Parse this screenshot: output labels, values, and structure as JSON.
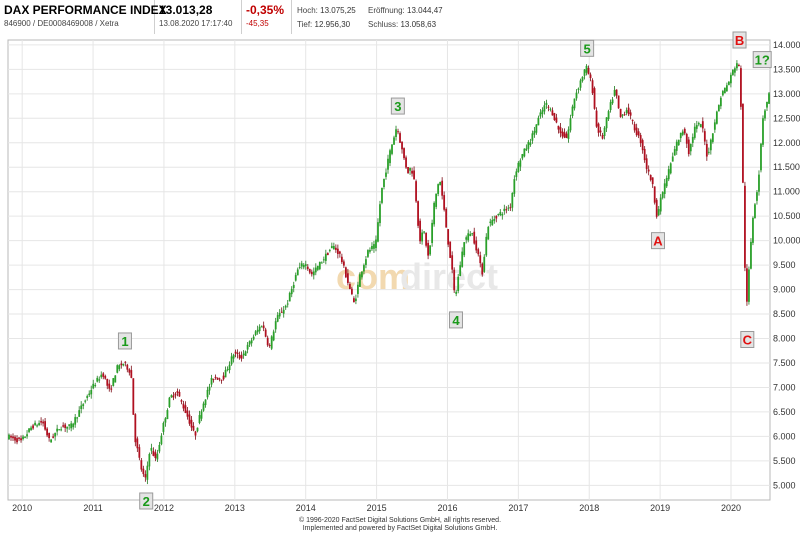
{
  "header": {
    "title": "DAX PERFORMANCE INDEX",
    "id_line": "846900 / DE0008469008 / Xetra",
    "price": "13.013,28",
    "datetime": "13.08.2020 17:17:40",
    "change_pct": "-0,35%",
    "change_abs": "-45,35",
    "stats": {
      "high_label": "Hoch:",
      "high_value": "13.075,25",
      "open_label": "Eröffnung:",
      "open_value": "13.044,47",
      "low_label": "Tief:",
      "low_value": "12.956,30",
      "close_label": "Schluss:",
      "close_value": "13.058,63"
    }
  },
  "watermark": {
    "part1": "com",
    "part2": "direct"
  },
  "footer": {
    "line1": "© 1996-2020 FactSet Digital Solutions GmbH, all rights reserved.",
    "line2": "Implemented and powered by FactSet Digital Solutions GmbH."
  },
  "colors": {
    "up": "#2aa02a",
    "down": "#b01020",
    "label_green": "#1a9a1a",
    "label_red": "#e01010",
    "label_bg": "#e4e4e4"
  },
  "chart_data": {
    "type": "candlestick",
    "x_unit": "year",
    "xlim": [
      2009.8,
      2020.55
    ],
    "ylim": [
      4700,
      14100
    ],
    "y_ticks": [
      5000,
      5500,
      6000,
      6500,
      7000,
      7500,
      8000,
      8500,
      9000,
      9500,
      10000,
      10500,
      11000,
      11500,
      12000,
      12500,
      13000,
      13500,
      14000
    ],
    "y_tick_labels": [
      "5.000",
      "5.500",
      "6.000",
      "6.500",
      "7.000",
      "7.500",
      "8.000",
      "8.500",
      "9.000",
      "9.500",
      "10.000",
      "10.500",
      "11.000",
      "11.500",
      "12.000",
      "12.500",
      "13.000",
      "13.500",
      "14.000"
    ],
    "x_ticks": [
      2010,
      2011,
      2012,
      2013,
      2014,
      2015,
      2016,
      2017,
      2018,
      2019,
      2020
    ],
    "x_tick_labels": [
      "2010",
      "2011",
      "2012",
      "2013",
      "2014",
      "2015",
      "2016",
      "2017",
      "2018",
      "2019",
      "2020"
    ],
    "grid": true,
    "path": [
      [
        2009.8,
        6000
      ],
      [
        2010.0,
        5900
      ],
      [
        2010.15,
        6200
      ],
      [
        2010.3,
        6300
      ],
      [
        2010.4,
        5900
      ],
      [
        2010.55,
        6200
      ],
      [
        2010.7,
        6200
      ],
      [
        2010.85,
        6600
      ],
      [
        2011.0,
        7000
      ],
      [
        2011.15,
        7300
      ],
      [
        2011.25,
        6900
      ],
      [
        2011.35,
        7400
      ],
      [
        2011.45,
        7500
      ],
      [
        2011.55,
        7300
      ],
      [
        2011.6,
        6000
      ],
      [
        2011.7,
        5300
      ],
      [
        2011.75,
        5100
      ],
      [
        2011.82,
        5800
      ],
      [
        2011.9,
        5500
      ],
      [
        2012.0,
        6200
      ],
      [
        2012.1,
        6800
      ],
      [
        2012.2,
        6900
      ],
      [
        2012.35,
        6400
      ],
      [
        2012.45,
        6000
      ],
      [
        2012.55,
        6600
      ],
      [
        2012.7,
        7200
      ],
      [
        2012.85,
        7200
      ],
      [
        2013.0,
        7700
      ],
      [
        2013.1,
        7600
      ],
      [
        2013.3,
        8100
      ],
      [
        2013.4,
        8300
      ],
      [
        2013.5,
        7800
      ],
      [
        2013.6,
        8400
      ],
      [
        2013.75,
        8700
      ],
      [
        2013.9,
        9400
      ],
      [
        2014.0,
        9550
      ],
      [
        2014.1,
        9300
      ],
      [
        2014.25,
        9600
      ],
      [
        2014.4,
        9900
      ],
      [
        2014.5,
        9700
      ],
      [
        2014.6,
        9200
      ],
      [
        2014.7,
        8700
      ],
      [
        2014.78,
        9300
      ],
      [
        2014.9,
        9800
      ],
      [
        2015.0,
        9900
      ],
      [
        2015.08,
        11000
      ],
      [
        2015.2,
        11800
      ],
      [
        2015.3,
        12350
      ],
      [
        2015.38,
        11800
      ],
      [
        2015.45,
        11400
      ],
      [
        2015.5,
        11500
      ],
      [
        2015.55,
        11200
      ],
      [
        2015.62,
        10000
      ],
      [
        2015.68,
        10200
      ],
      [
        2015.75,
        9600
      ],
      [
        2015.82,
        10700
      ],
      [
        2015.9,
        11300
      ],
      [
        2015.95,
        10800
      ],
      [
        2016.02,
        10000
      ],
      [
        2016.07,
        9500
      ],
      [
        2016.12,
        8800
      ],
      [
        2016.18,
        9400
      ],
      [
        2016.25,
        10000
      ],
      [
        2016.35,
        10200
      ],
      [
        2016.45,
        9700
      ],
      [
        2016.5,
        9300
      ],
      [
        2016.58,
        10300
      ],
      [
        2016.7,
        10500
      ],
      [
        2016.8,
        10600
      ],
      [
        2016.9,
        10700
      ],
      [
        2016.97,
        11400
      ],
      [
        2017.05,
        11700
      ],
      [
        2017.2,
        12100
      ],
      [
        2017.3,
        12500
      ],
      [
        2017.4,
        12800
      ],
      [
        2017.5,
        12600
      ],
      [
        2017.6,
        12200
      ],
      [
        2017.7,
        12100
      ],
      [
        2017.8,
        12900
      ],
      [
        2017.9,
        13300
      ],
      [
        2017.97,
        13550
      ],
      [
        2018.05,
        13200
      ],
      [
        2018.12,
        12300
      ],
      [
        2018.2,
        12100
      ],
      [
        2018.28,
        12600
      ],
      [
        2018.38,
        13100
      ],
      [
        2018.45,
        12500
      ],
      [
        2018.55,
        12700
      ],
      [
        2018.65,
        12300
      ],
      [
        2018.75,
        12000
      ],
      [
        2018.82,
        11500
      ],
      [
        2018.9,
        11200
      ],
      [
        2018.97,
        10500
      ],
      [
        2019.05,
        11000
      ],
      [
        2019.15,
        11500
      ],
      [
        2019.25,
        12000
      ],
      [
        2019.35,
        12300
      ],
      [
        2019.42,
        11800
      ],
      [
        2019.5,
        12300
      ],
      [
        2019.6,
        12400
      ],
      [
        2019.68,
        11700
      ],
      [
        2019.78,
        12400
      ],
      [
        2019.88,
        13000
      ],
      [
        2019.97,
        13200
      ],
      [
        2020.05,
        13500
      ],
      [
        2020.12,
        13700
      ],
      [
        2020.16,
        12600
      ],
      [
        2020.2,
        10000
      ],
      [
        2020.23,
        8500
      ],
      [
        2020.28,
        9700
      ],
      [
        2020.33,
        10600
      ],
      [
        2020.4,
        11200
      ],
      [
        2020.46,
        12500
      ],
      [
        2020.55,
        13000
      ]
    ],
    "annotations": [
      {
        "text": "1",
        "x": 2011.45,
        "y": 7950,
        "color": "green"
      },
      {
        "text": "2",
        "x": 2011.75,
        "y": 4680,
        "color": "green"
      },
      {
        "text": "3",
        "x": 2015.3,
        "y": 12750,
        "color": "green"
      },
      {
        "text": "4",
        "x": 2016.12,
        "y": 8380,
        "color": "green"
      },
      {
        "text": "5",
        "x": 2017.97,
        "y": 13930,
        "color": "green"
      },
      {
        "text": "A",
        "x": 2018.97,
        "y": 10000,
        "color": "red"
      },
      {
        "text": "B",
        "x": 2020.12,
        "y": 14100,
        "color": "red"
      },
      {
        "text": "C",
        "x": 2020.23,
        "y": 7980,
        "color": "red"
      },
      {
        "text": "1?",
        "x": 2020.44,
        "y": 13700,
        "color": "green"
      }
    ]
  }
}
